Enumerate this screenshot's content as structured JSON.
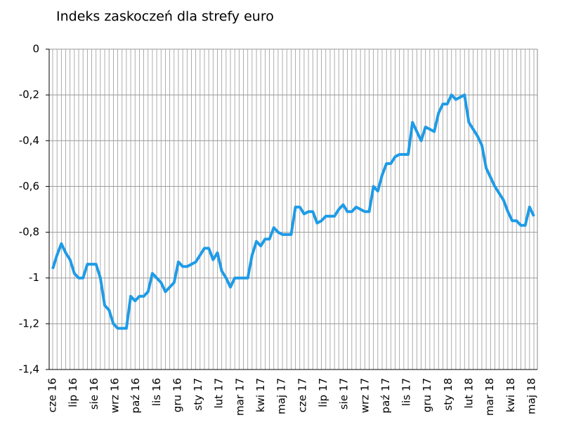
{
  "chart_data": {
    "type": "line",
    "title": "Indeks zaskoczeń dla strefy euro",
    "x_labels": [
      "cze 16",
      "lip 16",
      "sie 16",
      "wrz 16",
      "paź 16",
      "lis 16",
      "gru 16",
      "sty 17",
      "lut 17",
      "mar 17",
      "kwi 17",
      "maj 17",
      "cze 17",
      "lip 17",
      "sie 17",
      "wrz 17",
      "paź 17",
      "lis 17",
      "gru 17",
      "sty 18",
      "lut 18",
      "mar 18",
      "kwi 18",
      "maj 18"
    ],
    "series": [
      {
        "color": "#1e9be6",
        "values": [
          -0.96,
          -0.9,
          -0.85,
          -0.89,
          -0.92,
          -0.98,
          -1.0,
          -1.0,
          -0.94,
          -0.94,
          -0.94,
          -1.0,
          -1.12,
          -1.14,
          -1.2,
          -1.22,
          -1.22,
          -1.22,
          -1.08,
          -1.1,
          -1.08,
          -1.08,
          -1.06,
          -0.98,
          -1.0,
          -1.02,
          -1.06,
          -1.04,
          -1.02,
          -0.93,
          -0.95,
          -0.95,
          -0.94,
          -0.93,
          -0.9,
          -0.87,
          -0.87,
          -0.92,
          -0.89,
          -0.97,
          -1.0,
          -1.04,
          -1.0,
          -1.0,
          -1.0,
          -1.0,
          -0.9,
          -0.84,
          -0.86,
          -0.83,
          -0.83,
          -0.78,
          -0.8,
          -0.81,
          -0.81,
          -0.81,
          -0.69,
          -0.69,
          -0.72,
          -0.71,
          -0.71,
          -0.76,
          -0.75,
          -0.73,
          -0.73,
          -0.73,
          -0.7,
          -0.68,
          -0.71,
          -0.71,
          -0.69,
          -0.7,
          -0.71,
          -0.71,
          -0.6,
          -0.62,
          -0.55,
          -0.5,
          -0.5,
          -0.47,
          -0.46,
          -0.46,
          -0.46,
          -0.32,
          -0.36,
          -0.4,
          -0.34,
          -0.35,
          -0.36,
          -0.28,
          -0.24,
          -0.24,
          -0.2,
          -0.22,
          -0.21,
          -0.2,
          -0.32,
          -0.35,
          -0.38,
          -0.42,
          -0.52,
          -0.56,
          -0.6,
          -0.63,
          -0.66,
          -0.71,
          -0.75,
          -0.75,
          -0.77,
          -0.77,
          -0.69,
          -0.73
        ]
      }
    ],
    "ylim": [
      -1.4,
      0
    ],
    "yticks": [
      0,
      {
        "value": -0.2,
        "label": "-0,2"
      },
      {
        "value": -0.4,
        "label": "-0,4"
      },
      {
        "value": -0.6,
        "label": "-0,6"
      },
      {
        "value": -0.8,
        "label": "-0,8"
      },
      -1,
      {
        "value": -1.2,
        "label": "-1,2"
      },
      {
        "value": -1.4,
        "label": "-1,4"
      }
    ],
    "grid": true
  }
}
